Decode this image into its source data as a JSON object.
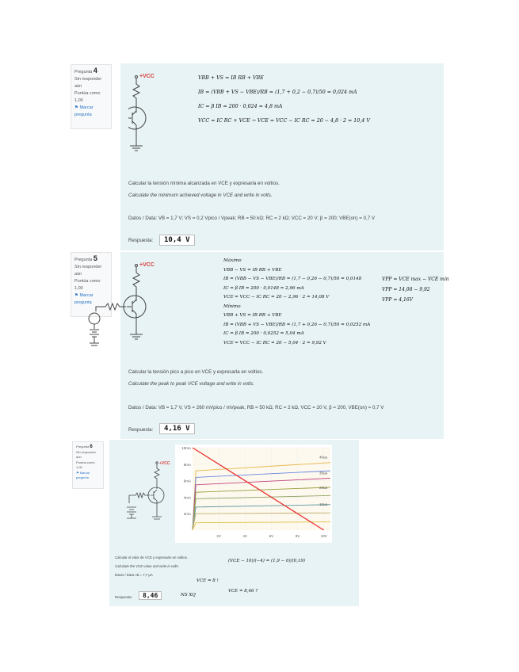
{
  "questions": [
    {
      "label": "Pregunta",
      "number": "4",
      "status": "Sin responder aún",
      "score": "Puntúa como 1,00",
      "flag": "Marcar pregunta",
      "circuit": {
        "vcc": "+VCC",
        "rc": "RC",
        "rb": "RB",
        "vs": "VS",
        "vb": "VB"
      },
      "prompt_es": "Calcular la tensión mínima alcanzada en VCE y expresarla en voltios.",
      "prompt_en": "Calculate the minimum achieved voltage in VCE and write in volts.",
      "data": "Datos / Data: VB = 1,7 V; VS = 0,2 Vpico / Vpeak; RB = 50 kΩ; RC = 2 kΩ; VCC = 20 V; β = 200; VBE(on) = 0,7 V",
      "answer_label": "Respuesta:",
      "answer": "10,4 V",
      "notes": [
        "VBB + VS = IB RB + VBE",
        "IB = (VBB + VS − VBE)/RB = (1,7 + 0,2 − 0,7)/50 = 0,024 mA",
        "IC = β IB = 200 · 0,024 = 4,8 mA",
        "VCC = IC RC + VCE → VCE = VCC − IC RC = 20 − 4,8 · 2 = 10,4 V"
      ]
    },
    {
      "label": "Pregunta",
      "number": "5",
      "status": "Sin responder aún",
      "score": "Puntúa como 1,00",
      "flag": "Marcar pregunta",
      "circuit": {
        "vcc": "+VCC",
        "rc": "RC",
        "rb": "RB",
        "vs": "VS",
        "vb": "VB"
      },
      "prompt_es": "Calcular la tensión pico a pico en VCE y expresarla en voltios.",
      "prompt_en": "Calculate the peak to peak VCE voltage and write in volts.",
      "data": "Datos / Data: VB = 1,7 V, VS = 260 mVpico / mVpeak, RB = 50 kΩ, RC = 2 kΩ, VCC = 20 V, β = 200, VBE(on) = 0,7 V",
      "answer_label": "Respuesta:",
      "answer": "4,16 V",
      "notes": [
        "Máximo",
        "VBB − VS = IB RB + VBE",
        "IB = (VBB − VS − VBE)/RB = (1,7 − 0,26 − 0,7)/50 = 0,0148",
        "IC = β IB = 200 · 0,0148 = 2,96 mA",
        "VCE = VCC − IC RC = 20 − 2,96 · 2 = 14,08 V",
        "Mínimo",
        "VBB + VS = IB RB + VBE",
        "IB = (VBB + VS − VBE)/RB = (1,7 + 0,26 − 0,7)/50 = 0,0252 mA",
        "IC = β IB = 200 · 0,0252 = 5,04 mA",
        "VCE = VCC − IC RC = 20 − 5,04 · 2 = 9,92 V",
        "VPP = VCE max − VCE mín",
        "VPP = 14,08 − 9,92",
        "VPP = 4,16V"
      ]
    },
    {
      "label": "Pregunta",
      "number": "6",
      "status": "Sin responder aún",
      "score": "Puntúa como 1,00",
      "flag": "Marcar pregunta",
      "circuit": {
        "vcc": "+VCC",
        "rc": "RC",
        "rb": "RB",
        "vb": "VB"
      },
      "prompt_es": "Calcular el valor de VCE y expresarlo en voltios.",
      "prompt_en": "Calculate the VCE value and write in volts.",
      "data": "Datos / Data: IB = 7,7 µA",
      "answer_label": "Respuesta:",
      "answer": "8,46",
      "notes": [
        "(VCE − 10)/(−4) = (1,9 − 0)/(0,19)",
        "VCE = 8 !",
        "NS XQ",
        "VCE = 8,46 ?"
      ]
    }
  ],
  "chart_data": {
    "type": "line",
    "x_ticks": [
      "2V",
      "4V",
      "6V",
      "8V",
      "10V"
    ],
    "y_ticks": [
      "2mA",
      "4mA",
      "6mA",
      "8mA",
      "10mA"
    ],
    "xlim": [
      0,
      10.5
    ],
    "ylim": [
      0,
      10
    ],
    "labels": [
      "40ua",
      "30ua",
      "20ua",
      "10ua"
    ],
    "curves": [
      {
        "color": "#e8b84a",
        "i0": 7.2,
        "i1": 8.2
      },
      {
        "color": "#6b86e0",
        "i0": 6.4,
        "i1": 7.2
      },
      {
        "color": "#c2417e",
        "i0": 5.5,
        "i1": 6.3
      },
      {
        "color": "#9a9a3a",
        "i0": 4.6,
        "i1": 5.2
      },
      {
        "color": "#8fa060",
        "i0": 3.8,
        "i1": 4.2
      },
      {
        "color": "#5f9aa0",
        "i0": 2.8,
        "i1": 3.1
      },
      {
        "color": "#c9b070",
        "i0": 2.0,
        "i1": 2.1
      },
      {
        "color": "#e0c040",
        "i0": 0.9,
        "i1": 1.0
      }
    ],
    "load_line": {
      "color": "#e83030",
      "points": [
        [
          0,
          10
        ],
        [
          10,
          0
        ]
      ]
    },
    "grid": true
  }
}
